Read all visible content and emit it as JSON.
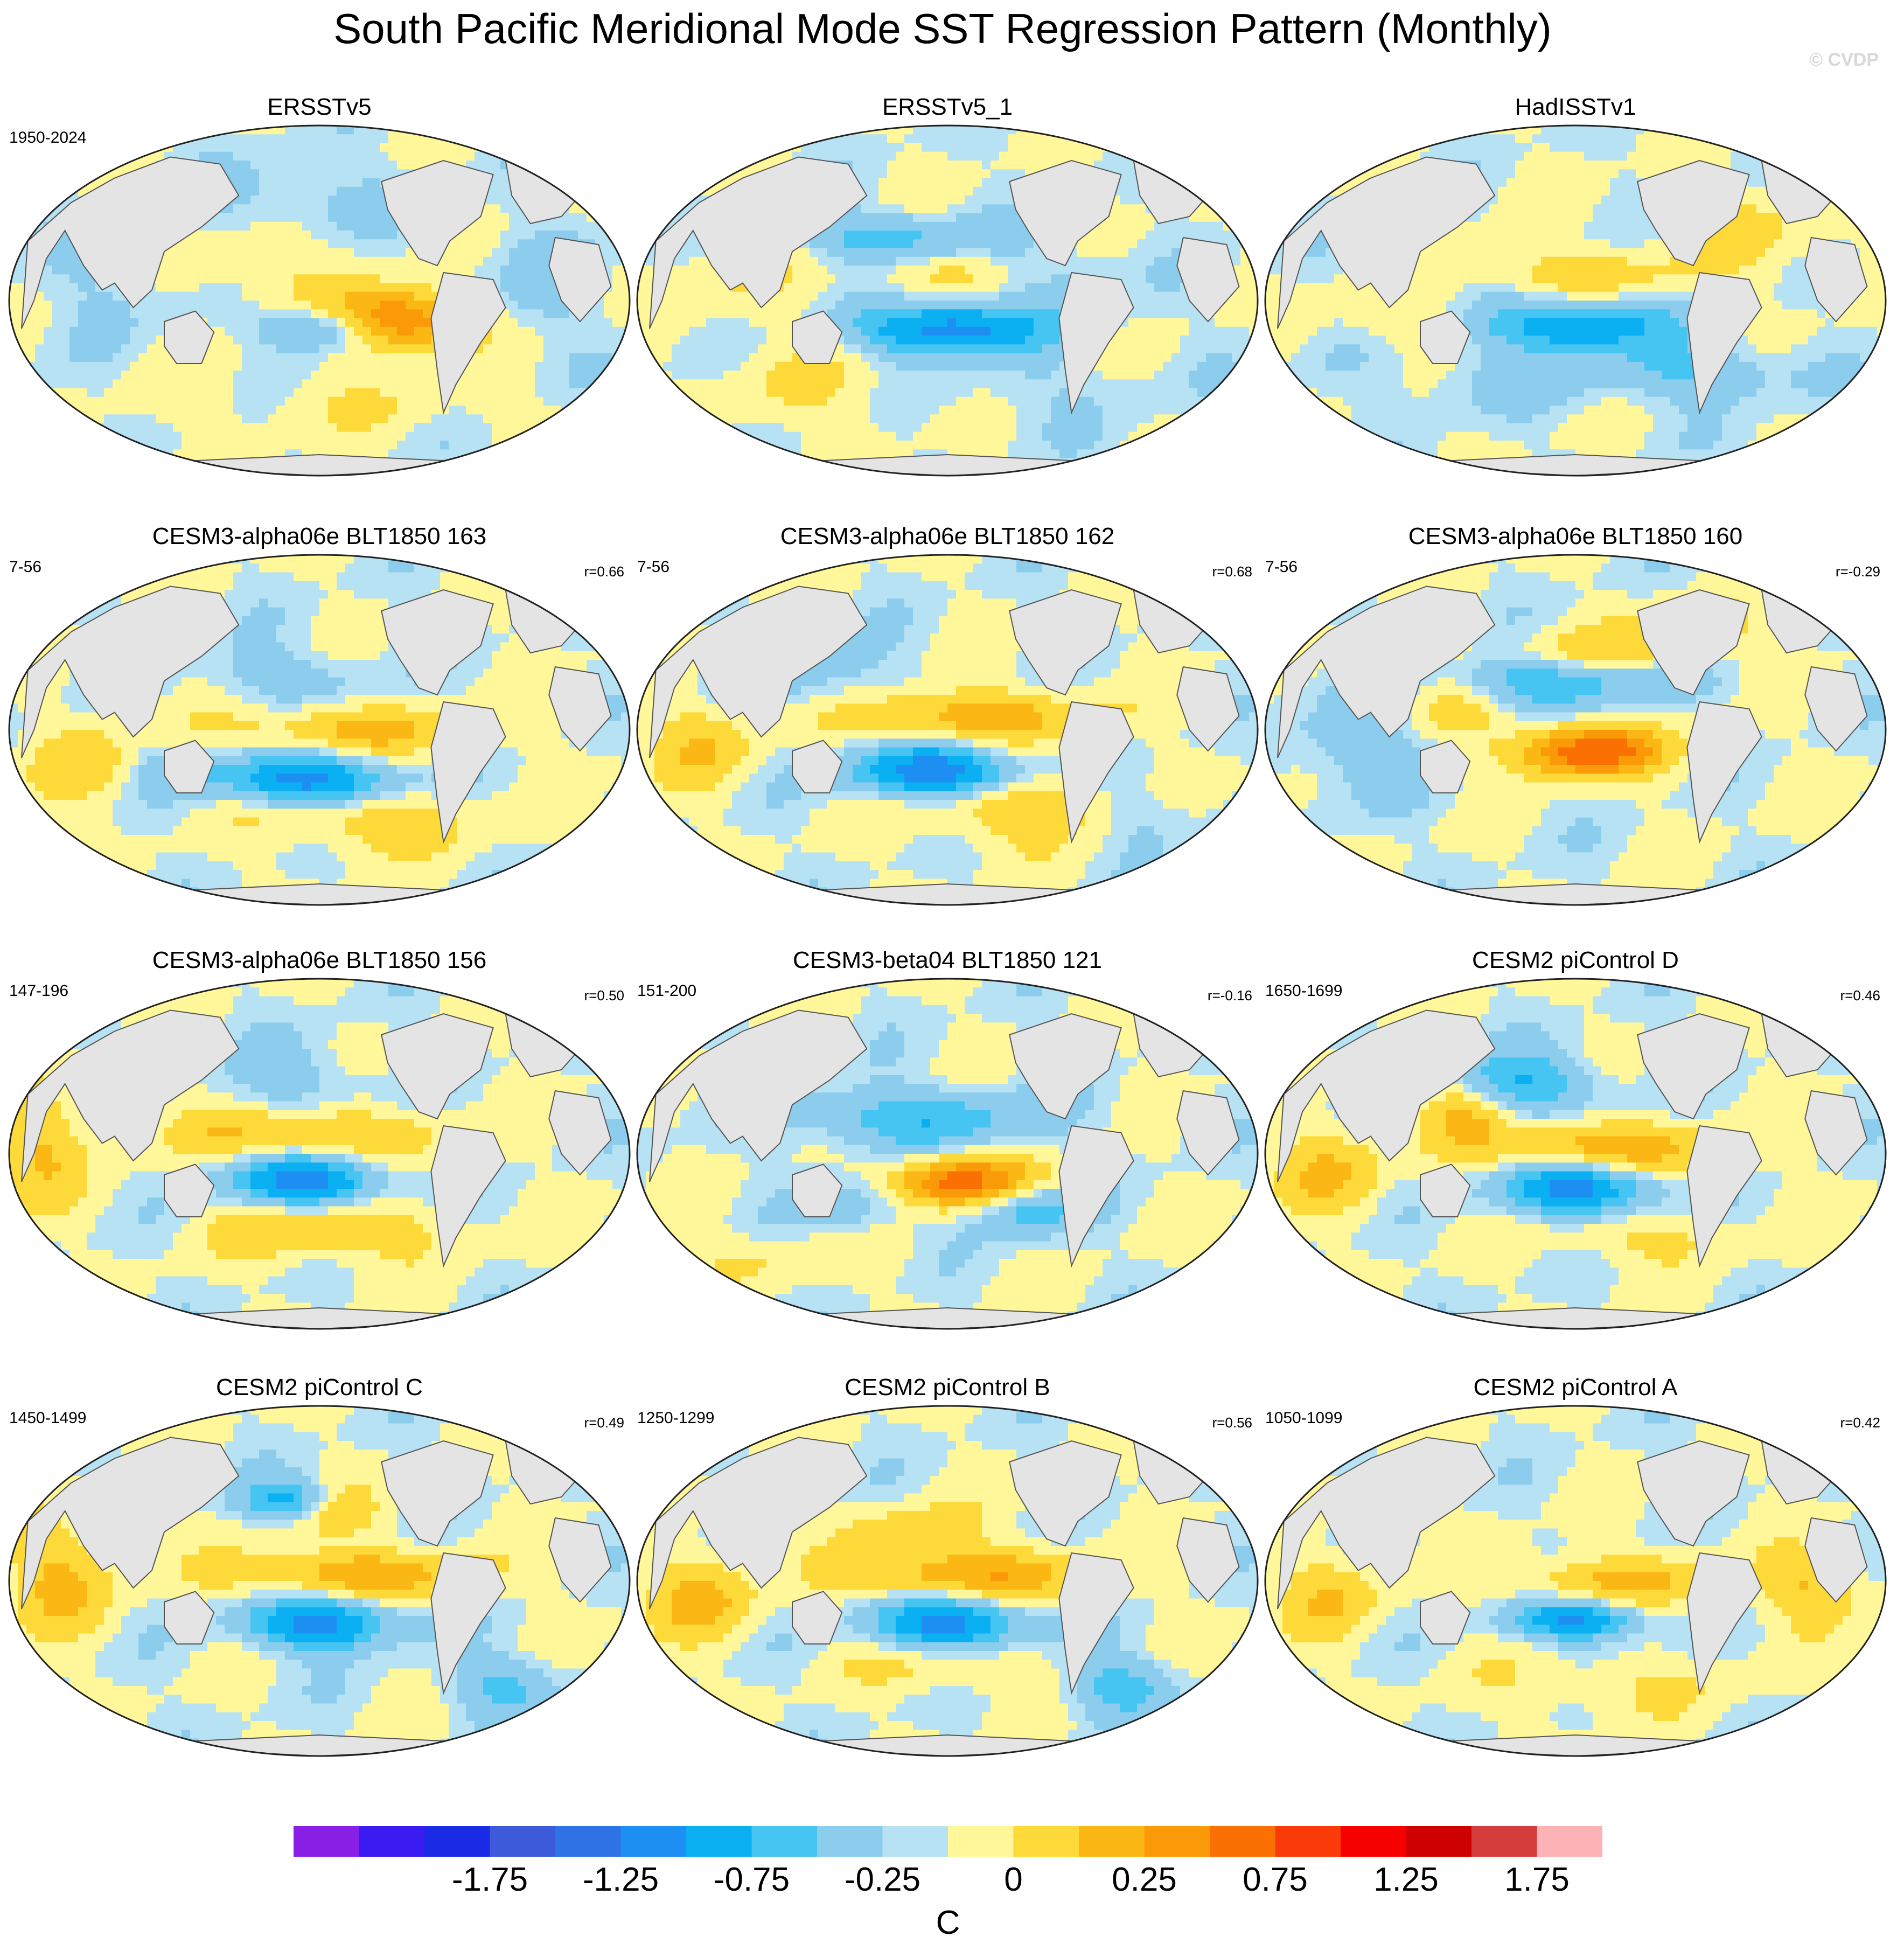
{
  "title": "South Pacific Meridional Mode SST Regression Pattern (Monthly)",
  "watermark": "© CVDP",
  "chart_data": {
    "type": "heatmap",
    "projection": "robinson-like global map, Pacific centered",
    "variable": "SST regression",
    "units": "C",
    "panels": [
      {
        "title": "ERSSTv5",
        "period": "1950-2024",
        "r": "",
        "pattern": "obs1"
      },
      {
        "title": "ERSSTv5_1",
        "period": "",
        "r": "",
        "pattern": "obs2"
      },
      {
        "title": "HadISSTv1",
        "period": "",
        "r": "",
        "pattern": "obs3"
      },
      {
        "title": "CESM3-alpha06e BLT1850 163",
        "period": "7-56",
        "r": "r=0.66",
        "pattern": "m1"
      },
      {
        "title": "CESM3-alpha06e BLT1850 162",
        "period": "7-56",
        "r": "r=0.68",
        "pattern": "m2"
      },
      {
        "title": "CESM3-alpha06e BLT1850 160",
        "period": "7-56",
        "r": "r=-0.29",
        "pattern": "m3"
      },
      {
        "title": "CESM3-alpha06e BLT1850 156",
        "period": "147-196",
        "r": "r=0.50",
        "pattern": "m4"
      },
      {
        "title": "CESM3-beta04 BLT1850 121",
        "period": "151-200",
        "r": "r=-0.16",
        "pattern": "m5"
      },
      {
        "title": "CESM2 piControl D",
        "period": "1650-1699",
        "r": "r=0.46",
        "pattern": "m6"
      },
      {
        "title": "CESM2 piControl C",
        "period": "1450-1499",
        "r": "r=0.49",
        "pattern": "m7"
      },
      {
        "title": "CESM2 piControl B",
        "period": "1250-1299",
        "r": "r=0.56",
        "pattern": "m8"
      },
      {
        "title": "CESM2 piControl A",
        "period": "1050-1099",
        "r": "r=0.42",
        "pattern": "m9"
      }
    ],
    "colorbar": {
      "label": "C",
      "tick_labels": [
        "-1.75",
        "-1.25",
        "-0.75",
        "-0.25",
        "0",
        "0.25",
        "0.75",
        "1.25",
        "1.75"
      ],
      "colors": [
        "#8a1fe6",
        "#3a1cf2",
        "#1a2be6",
        "#3c5ad9",
        "#2f72e6",
        "#1e8ff2",
        "#0ab0f2",
        "#46c4f2",
        "#8ccdee",
        "#b7e2f4",
        "#fff79a",
        "#fdda3a",
        "#fbb714",
        "#fb9a08",
        "#fb7003",
        "#fb3a0a",
        "#f70000",
        "#cf0000",
        "#d53d3c",
        "#fdb3b5"
      ]
    },
    "land_color": "#e4e4e4"
  }
}
